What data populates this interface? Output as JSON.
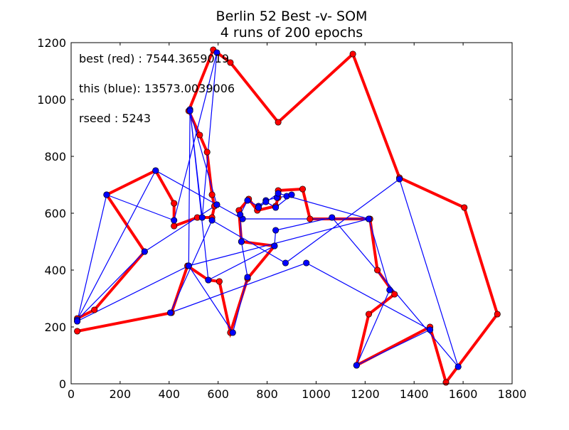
{
  "chart_data": {
    "type": "line",
    "title": "Berlin 52 Best -v- SOM",
    "subtitle": "4 runs of 200 epochs",
    "xlabel": "",
    "ylabel": "",
    "xlim": [
      0,
      1800
    ],
    "ylim": [
      0,
      1200
    ],
    "xticks": [
      "0",
      "200",
      "400",
      "600",
      "800",
      "1000",
      "1200",
      "1400",
      "1600",
      "1800"
    ],
    "yticks": [
      "0",
      "200",
      "400",
      "600",
      "800",
      "1000",
      "1200"
    ],
    "grid": false,
    "annotations": [
      "best (red) : 7544.3659019",
      "this (blue): 13573.0039006",
      "rseed : 5243"
    ],
    "colors": {
      "best": "#ff0000",
      "som": "#0000ff"
    },
    "series": [
      {
        "color_key": "best",
        "x": [
          25,
          95,
          300,
          145,
          345,
          420,
          420,
          515,
          575,
          585,
          575,
          555,
          525,
          480,
          580,
          650,
          845,
          1150,
          1340,
          1605,
          1740,
          1530,
          1465,
          1165,
          1215,
          1320,
          1250,
          1220,
          975,
          945,
          845,
          845,
          835,
          760,
          725,
          685,
          695,
          830,
          720,
          650,
          605,
          560,
          475,
          410,
          25
        ],
        "y": [
          230,
          260,
          465,
          665,
          750,
          635,
          555,
          585,
          585,
          625,
          665,
          815,
          875,
          960,
          1175,
          1130,
          920,
          1160,
          725,
          620,
          245,
          5,
          200,
          65,
          245,
          315,
          400,
          580,
          580,
          685,
          680,
          655,
          625,
          610,
          650,
          610,
          500,
          485,
          370,
          180,
          360,
          365,
          415,
          250,
          185
        ]
      },
      {
        "color_key": "som",
        "x": [
          25,
          145,
          420,
          595,
          535,
          485,
          560,
          830,
          835,
          1065,
          1580,
          1340,
          875,
          575,
          405,
          960,
          1465,
          1165,
          1300,
          1215,
          700,
          595,
          345,
          25,
          300,
          595,
          485,
          480,
          660,
          720,
          695,
          690,
          720,
          765,
          795,
          840,
          880,
          900,
          835,
          795,
          765,
          845,
          1215,
          480,
          25
        ],
        "y": [
          220,
          665,
          575,
          1165,
          585,
          965,
          365,
          485,
          540,
          585,
          60,
          720,
          425,
          575,
          250,
          425,
          190,
          65,
          330,
          580,
          580,
          630,
          750,
          225,
          465,
          630,
          960,
          415,
          180,
          375,
          500,
          595,
          645,
          625,
          645,
          655,
          660,
          665,
          620,
          640,
          620,
          670,
          580,
          415,
          220
        ]
      }
    ]
  }
}
